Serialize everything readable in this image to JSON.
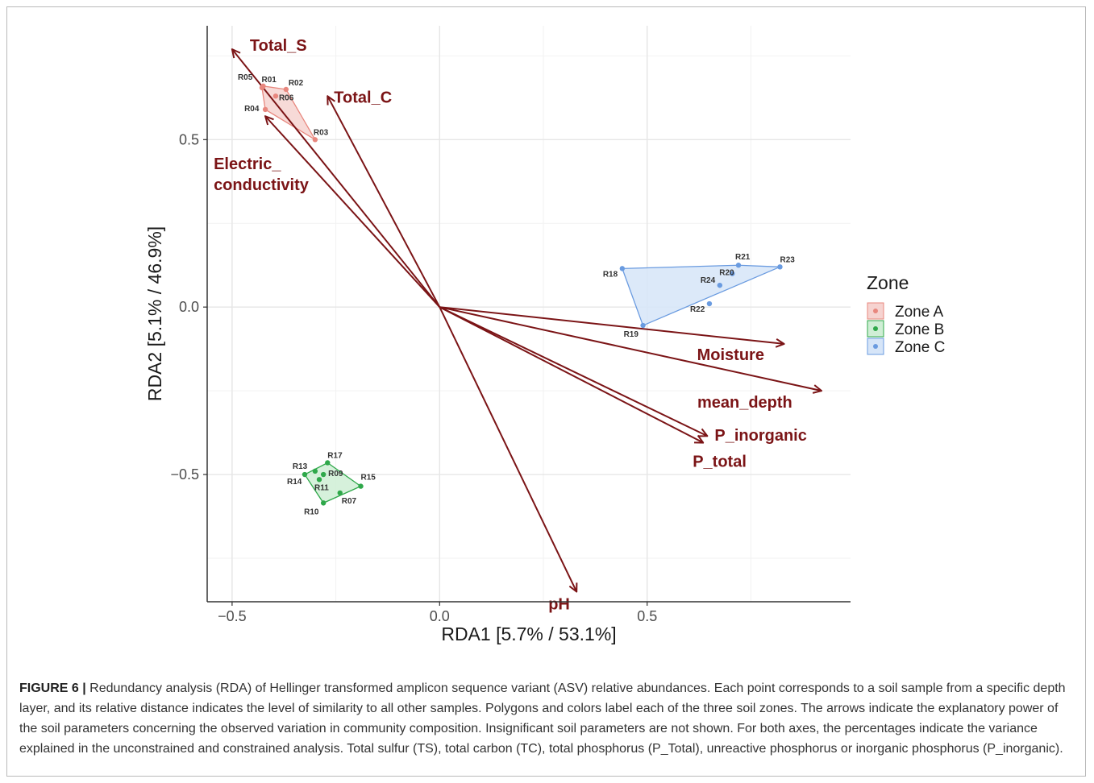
{
  "chart_data": {
    "type": "scatter",
    "xlabel": "RDA1 [5.7% / 53.1%]",
    "ylabel": "RDA2 [5.1% / 46.9%]",
    "xlim": [
      -0.56,
      0.99
    ],
    "ylim": [
      -0.88,
      0.84
    ],
    "xticks": [
      -0.5,
      0.0,
      0.5
    ],
    "xtick_labels": [
      "−0.5",
      "0.0",
      "0.5"
    ],
    "yticks": [
      -0.5,
      0.0,
      0.5
    ],
    "ytick_labels": [
      "−0.5",
      "0.0",
      "0.5"
    ],
    "grid": true,
    "legend": {
      "title": "Zone",
      "placement": "right",
      "entries": [
        {
          "name": "Zone A",
          "color": "#e8877e"
        },
        {
          "name": "Zone B",
          "color": "#2fa84a"
        },
        {
          "name": "Zone C",
          "color": "#6a9be0"
        }
      ]
    },
    "series": [
      {
        "name": "Zone A",
        "color": "#e8877e",
        "fill": "#f6d3d0",
        "hull": [
          "R05",
          "R01",
          "R02",
          "R03",
          "R04"
        ],
        "points": [
          {
            "label": "R01",
            "x": -0.425,
            "y": 0.66
          },
          {
            "label": "R02",
            "x": -0.37,
            "y": 0.65
          },
          {
            "label": "R05",
            "x": -0.428,
            "y": 0.655
          },
          {
            "label": "R06",
            "x": -0.395,
            "y": 0.63
          },
          {
            "label": "R04",
            "x": -0.42,
            "y": 0.59
          },
          {
            "label": "R03",
            "x": -0.3,
            "y": 0.5
          }
        ]
      },
      {
        "name": "Zone B",
        "color": "#2fa84a",
        "fill": "#cfeed5",
        "hull": [
          "R14",
          "R17",
          "R15",
          "R10"
        ],
        "points": [
          {
            "label": "R17",
            "x": -0.27,
            "y": -0.465
          },
          {
            "label": "R13",
            "x": -0.3,
            "y": -0.49
          },
          {
            "label": "R09",
            "x": -0.28,
            "y": -0.5
          },
          {
            "label": "R11",
            "x": -0.29,
            "y": -0.515
          },
          {
            "label": "R14",
            "x": -0.325,
            "y": -0.5
          },
          {
            "label": "R15",
            "x": -0.19,
            "y": -0.535
          },
          {
            "label": "R07",
            "x": -0.24,
            "y": -0.555
          },
          {
            "label": "R10",
            "x": -0.28,
            "y": -0.585
          }
        ]
      },
      {
        "name": "Zone C",
        "color": "#6a9be0",
        "fill": "#d6e5f8",
        "hull": [
          "R18",
          "R21",
          "R23",
          "R19"
        ],
        "points": [
          {
            "label": "R18",
            "x": 0.44,
            "y": 0.115
          },
          {
            "label": "R21",
            "x": 0.72,
            "y": 0.125
          },
          {
            "label": "R23",
            "x": 0.82,
            "y": 0.12
          },
          {
            "label": "R20",
            "x": 0.705,
            "y": 0.1
          },
          {
            "label": "R24",
            "x": 0.675,
            "y": 0.065
          },
          {
            "label": "R22",
            "x": 0.65,
            "y": 0.01
          },
          {
            "label": "R19",
            "x": 0.49,
            "y": -0.055
          }
        ]
      }
    ],
    "vectors": [
      {
        "name": "Total_S",
        "x": -0.5,
        "y": 0.77
      },
      {
        "name": "Total_C",
        "x": -0.27,
        "y": 0.63
      },
      {
        "name": "Electric_\nconductivity",
        "x": -0.42,
        "y": 0.57
      },
      {
        "name": "Moisture",
        "x": 0.83,
        "y": -0.11
      },
      {
        "name": "mean_depth",
        "x": 0.92,
        "y": -0.25
      },
      {
        "name": "P_inorganic",
        "x": 0.645,
        "y": -0.385
      },
      {
        "name": "P_total",
        "x": 0.635,
        "y": -0.405
      },
      {
        "name": "pH",
        "x": 0.33,
        "y": -0.85
      }
    ],
    "arrow_color": "#7b1416"
  },
  "caption": {
    "label": "FIGURE 6 |",
    "text": " Redundancy analysis (RDA) of Hellinger transformed amplicon sequence variant (ASV) relative abundances. Each point corresponds to a soil sample from a specific depth layer, and its relative distance indicates the level of similarity to all other samples. Polygons and colors label each of the three soil zones. The arrows indicate the explanatory power of the soil parameters concerning the observed variation in community composition. Insignificant soil parameters are not shown. For both axes, the percentages indicate the variance explained in the unconstrained and constrained analysis. Total sulfur (TS), total carbon (TC), total phosphorus (P_Total), unreactive phosphorus or inorganic phosphorus (P_inorganic)."
  }
}
